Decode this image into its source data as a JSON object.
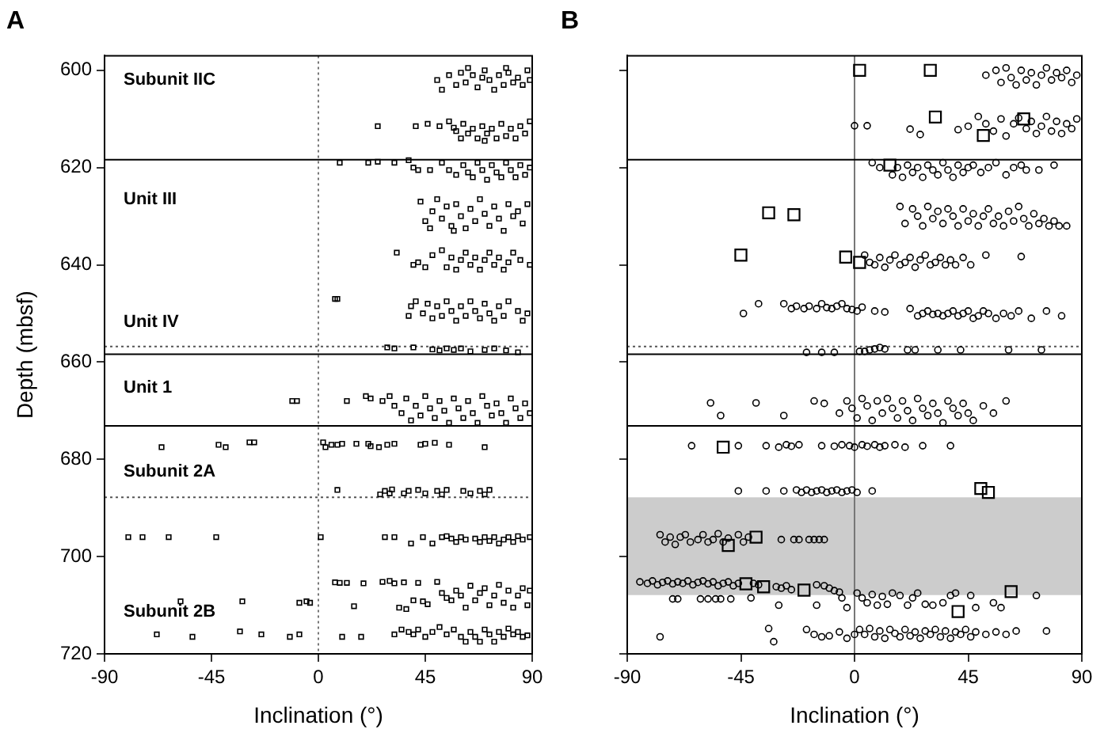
{
  "chart_data": [
    {
      "type": "scatter",
      "title": "A",
      "xlabel": "Inclination (°)",
      "ylabel": "Depth (mbsf)",
      "xlim": [
        -90,
        90
      ],
      "xticks": [
        -90,
        -45,
        0,
        45,
        90
      ],
      "ylim": [
        720,
        597
      ],
      "yticks": [
        600,
        620,
        640,
        660,
        680,
        700,
        720
      ],
      "grid": false,
      "legend": false,
      "series": [
        {
          "color": "#000000",
          "marker": "square",
          "x": [
            50,
            52,
            55,
            58,
            60,
            62,
            63,
            65,
            67,
            69,
            70,
            72,
            74,
            76,
            78,
            79,
            80,
            82,
            84,
            86,
            88,
            89,
            25,
            41,
            46,
            51,
            55,
            57,
            58,
            60,
            61,
            63,
            65,
            67,
            69,
            70,
            71,
            73,
            75,
            77,
            79,
            81,
            83,
            85,
            87,
            89,
            9,
            21,
            25,
            32,
            38,
            40,
            42,
            47,
            52,
            55,
            58,
            61,
            63,
            65,
            67,
            69,
            71,
            73,
            75,
            77,
            79,
            81,
            83,
            85,
            87,
            89,
            43,
            45,
            47,
            48,
            50,
            52,
            54,
            56,
            57,
            58,
            60,
            62,
            64,
            66,
            68,
            70,
            72,
            74,
            76,
            78,
            80,
            82,
            84,
            86,
            88,
            33,
            40,
            42,
            45,
            48,
            52,
            54,
            56,
            58,
            60,
            62,
            64,
            66,
            68,
            70,
            72,
            74,
            76,
            78,
            80,
            82,
            85,
            89,
            7,
            8,
            38,
            39,
            41,
            44,
            46,
            48,
            50,
            52,
            54,
            56,
            58,
            60,
            62,
            64,
            66,
            68,
            70,
            72,
            74,
            76,
            78,
            80,
            84,
            86,
            88,
            29,
            32,
            40,
            48,
            51,
            54,
            57,
            60,
            64,
            70,
            74,
            79,
            84,
            -11,
            -9,
            12,
            20,
            22,
            27,
            30,
            32,
            35,
            37,
            39,
            41,
            43,
            45,
            47,
            49,
            51,
            53,
            55,
            57,
            59,
            61,
            63,
            65,
            67,
            69,
            71,
            73,
            75,
            77,
            79,
            81,
            83,
            85,
            87,
            89,
            -66,
            -42,
            -39,
            -29,
            -27,
            2,
            3,
            5.5,
            8,
            10,
            16,
            21,
            22,
            25.5,
            29,
            32,
            43,
            45,
            49,
            55,
            70,
            8,
            26,
            28,
            30,
            31,
            36,
            38,
            42,
            45,
            50,
            52,
            54,
            61,
            64,
            68,
            70,
            72,
            -80,
            -74,
            -63,
            -43,
            1,
            28,
            32,
            39,
            44,
            48,
            52,
            54,
            56,
            58,
            60,
            62,
            66,
            68,
            70,
            72,
            74,
            76,
            78,
            80,
            82,
            84,
            86,
            89,
            -58,
            -32,
            -8,
            -5,
            -3.5,
            7,
            9,
            12,
            15,
            19,
            27,
            30,
            32,
            34,
            36,
            37,
            40,
            42,
            44,
            46,
            50,
            52,
            54,
            56,
            58,
            60,
            62,
            64,
            66,
            68,
            70,
            72,
            74,
            76,
            78,
            80,
            82,
            84,
            86,
            88,
            89,
            -68,
            -53,
            -33,
            -24,
            -12,
            -8,
            10,
            18,
            32,
            35,
            38,
            40,
            42,
            45,
            48,
            51,
            54,
            57,
            60,
            62,
            64,
            66,
            68,
            70,
            72,
            74,
            76,
            78,
            80,
            82,
            84,
            86,
            88
          ],
          "values": [
            602,
            604,
            601,
            603,
            600.5,
            602.5,
            599.5,
            601,
            603.5,
            601.5,
            600,
            602,
            604,
            601,
            603,
            599.5,
            600.5,
            602.5,
            601.5,
            603,
            600,
            602,
            611.5,
            611.5,
            611,
            611.5,
            610.5,
            611.8,
            612.5,
            614,
            611,
            613,
            612,
            614,
            611.5,
            614.5,
            613,
            612,
            614,
            611,
            613.5,
            612,
            614,
            611.5,
            613,
            610.5,
            619,
            619,
            618.8,
            619,
            618.5,
            620,
            620.5,
            620.5,
            619,
            620.5,
            621.5,
            619.5,
            621,
            622,
            619,
            620.5,
            622.5,
            619.5,
            621,
            622,
            619,
            620.5,
            622,
            619.5,
            621.5,
            620,
            627,
            631,
            632.5,
            629,
            626.5,
            630.5,
            628,
            632,
            633,
            627.5,
            630,
            632.5,
            628.5,
            631,
            626.5,
            629.5,
            632,
            628,
            630.5,
            633,
            627.5,
            630,
            629,
            631.5,
            627.5,
            637.5,
            640,
            639.5,
            640.5,
            638,
            637,
            640.5,
            638.5,
            641,
            639,
            637.5,
            640,
            638.5,
            641,
            639,
            637.5,
            640,
            638.5,
            641,
            639.5,
            637.5,
            639,
            640,
            647,
            647,
            650.5,
            648.5,
            647.5,
            650,
            648,
            651,
            648.5,
            650.5,
            647.5,
            649.5,
            651.5,
            648.5,
            650.5,
            647.5,
            649.5,
            651,
            648,
            650,
            651.5,
            648.5,
            650.5,
            647.5,
            649.5,
            651.5,
            650,
            657,
            657.2,
            657,
            657.4,
            657.6,
            657.2,
            657.5,
            657.2,
            657.8,
            657.5,
            657.2,
            657.6,
            658,
            668,
            668,
            668,
            667,
            667.5,
            668,
            667,
            669,
            670.5,
            667.5,
            672,
            669,
            671,
            667,
            669.5,
            671.5,
            668,
            670,
            672.5,
            667.5,
            669.5,
            671.5,
            668,
            670.5,
            672.5,
            667,
            669,
            671,
            668.5,
            670.5,
            672.5,
            667.5,
            669.5,
            671.5,
            668.5,
            670.5,
            677.5,
            677,
            677.5,
            676.5,
            676.5,
            676.5,
            677.5,
            677,
            677,
            676.8,
            676.8,
            676.8,
            677.3,
            677.5,
            677,
            676.8,
            677,
            676.8,
            676.6,
            677,
            677.5,
            686.3,
            687.2,
            686.5,
            687,
            686.2,
            687,
            686.5,
            686.3,
            687,
            686.5,
            687.2,
            686.3,
            686.5,
            687,
            686.5,
            687.2,
            686.3,
            696,
            696,
            696,
            696,
            696,
            696,
            696,
            697.3,
            696,
            697.3,
            696,
            695.8,
            696.3,
            697,
            696,
            696.5,
            696.3,
            697,
            696,
            696.8,
            696,
            697.3,
            696.5,
            696,
            697,
            695.8,
            696.5,
            696,
            709.2,
            709.2,
            709.5,
            709.2,
            709.5,
            705.3,
            705.4,
            705.4,
            710.2,
            705.5,
            705.2,
            705,
            705.5,
            710.5,
            705.3,
            710.8,
            709,
            705.4,
            709.2,
            709.8,
            705.2,
            707.5,
            708.5,
            709,
            707,
            708,
            710.5,
            706,
            709,
            707.5,
            706.5,
            710,
            708,
            705.8,
            709.5,
            707,
            710.5,
            708,
            706.5,
            710,
            707,
            716,
            716.5,
            715.4,
            716,
            716.5,
            716,
            716.5,
            716.5,
            716,
            715,
            715.5,
            716,
            715,
            716.5,
            715.5,
            714.5,
            716,
            715,
            716.5,
            717.5,
            715.5,
            716.5,
            717.5,
            715,
            716,
            717.5,
            715.5,
            716.5,
            714.8,
            716,
            715.5,
            716.5,
            716.2
          ]
        }
      ],
      "ref_lines": [
        {
          "axis": "x",
          "value": 0,
          "line_style": "dotted",
          "color": "#777777"
        },
        {
          "axis": "y",
          "value": 618.4,
          "line_style": "solid",
          "color": "#000000"
        },
        {
          "axis": "y",
          "value": 656.8,
          "line_style": "dotted",
          "color": "#555555"
        },
        {
          "axis": "y",
          "value": 658.4,
          "line_style": "solid",
          "color": "#000000"
        },
        {
          "axis": "y",
          "value": 673.1,
          "line_style": "solid",
          "color": "#000000"
        },
        {
          "axis": "y",
          "value": 687.8,
          "line_style": "dotted",
          "color": "#555555"
        }
      ],
      "annotations": [
        "Subunit IIC",
        "Unit III",
        "Unit IV",
        "Unit 1",
        "Subunit 2A",
        "Subunit 2B"
      ]
    },
    {
      "type": "scatter",
      "title": "B",
      "xlabel": "Inclination (°)",
      "xlim": [
        -90,
        90
      ],
      "xticks": [
        -90,
        -45,
        0,
        45,
        90
      ],
      "ylim": [
        720,
        597
      ],
      "yticks": [
        600,
        620,
        640,
        660,
        680,
        700,
        720
      ],
      "tick_labels": "x",
      "grid": false,
      "legend": false,
      "series": [
        {
          "color": "#000000",
          "marker": "circle",
          "x": [
            52,
            56,
            58,
            60,
            62,
            64,
            66,
            68,
            70,
            72,
            74,
            76,
            78,
            80,
            82,
            84,
            86,
            88,
            0,
            5,
            22,
            26,
            41,
            45,
            49,
            52,
            55,
            58,
            60,
            63,
            65,
            68,
            70,
            72,
            74,
            76,
            78,
            80,
            82,
            84,
            86,
            88,
            7,
            10,
            15,
            17,
            19,
            21,
            23,
            25,
            27,
            29,
            31,
            33,
            35,
            37,
            39,
            41,
            43,
            45,
            47,
            50,
            53,
            56,
            60,
            63,
            66,
            68,
            73,
            79,
            18,
            20,
            23,
            25,
            27,
            29,
            31,
            33,
            35,
            37,
            39,
            41,
            43,
            45,
            47,
            49,
            51,
            53,
            55,
            57,
            59,
            61,
            63,
            65,
            67,
            69,
            71,
            73,
            75,
            77,
            79,
            81,
            84,
            4,
            6,
            8,
            10,
            12,
            14,
            16,
            18,
            20,
            22,
            24,
            26,
            28,
            30,
            32,
            34,
            36,
            38,
            40,
            43,
            46,
            52,
            66,
            -44,
            -38,
            -28,
            -25,
            -23,
            -20,
            -18,
            -15,
            -13,
            -11,
            -9,
            -7,
            -5,
            -3,
            -1,
            1,
            3,
            8,
            12,
            22,
            25,
            27,
            29,
            31,
            33,
            35,
            37,
            39,
            41,
            43,
            45,
            47,
            49,
            51,
            53,
            56,
            59,
            62,
            65,
            70,
            76,
            82,
            -19,
            -13,
            -8,
            2,
            4,
            6,
            8,
            10,
            12,
            21,
            24,
            33,
            42,
            61,
            74,
            -57,
            -53,
            -39,
            -28,
            -16,
            -12,
            -6,
            -3,
            -1,
            1,
            3,
            5,
            7,
            9,
            11,
            13,
            15,
            17,
            19,
            21,
            23,
            25,
            27,
            29,
            31,
            33,
            35,
            37,
            39,
            41,
            43,
            45,
            47,
            51,
            55,
            60,
            -64.5,
            -46,
            -35,
            -30,
            -27,
            -25,
            -22,
            -13,
            -8,
            -5,
            -2,
            0,
            3,
            5,
            8,
            10,
            12,
            16,
            20,
            27,
            38,
            -46,
            -35,
            -28,
            -23,
            -21,
            -19,
            -17,
            -15,
            -13,
            -11,
            -9,
            -7,
            -5,
            -3,
            -1,
            1,
            7,
            -77,
            -75,
            -73,
            -71,
            -69,
            -67,
            -65,
            -62,
            -60,
            -58,
            -56,
            -54,
            -52,
            -50,
            -46,
            -44,
            -42,
            -29,
            -24,
            -22,
            -18,
            -16,
            -14,
            -12,
            -85,
            -82,
            -80,
            -78,
            -76,
            -74,
            -72,
            -70,
            -68,
            -66,
            -64,
            -62,
            -60,
            -58,
            -56,
            -54,
            -52,
            -50,
            -48,
            -46,
            -40,
            -38,
            -31,
            -29,
            -27,
            -25,
            -15,
            -12,
            -10,
            -8,
            -6,
            -72,
            -70,
            -61,
            -58,
            -55,
            -53,
            -49,
            -41,
            -30,
            -15,
            -5,
            -3,
            1,
            3,
            5,
            7,
            9,
            11,
            13,
            15,
            18,
            21,
            23,
            25,
            28,
            31,
            35,
            38,
            40,
            46,
            48,
            55,
            58,
            72,
            -77,
            -34,
            -32,
            -19,
            -16,
            -13,
            -10,
            -6,
            -3,
            0,
            2,
            4,
            6,
            8,
            10,
            12,
            14,
            16,
            18,
            20,
            22,
            24,
            26,
            28,
            30,
            32,
            34,
            36,
            38,
            40,
            42,
            44,
            46,
            48,
            52,
            56,
            60,
            64,
            76
          ],
          "values": [
            601,
            600,
            602.5,
            599.5,
            601.5,
            603,
            600,
            602,
            600.5,
            603,
            601,
            599.5,
            602,
            600.5,
            601.5,
            600,
            602.5,
            601,
            611.4,
            611.4,
            612.1,
            613.2,
            612.2,
            611.5,
            609.5,
            611,
            612.5,
            610,
            613.5,
            611,
            609.8,
            612,
            610.5,
            613,
            611.5,
            609.5,
            612.5,
            610.5,
            613,
            611,
            612,
            610,
            619,
            620,
            621.5,
            620,
            622,
            619.5,
            621,
            620,
            622,
            619.5,
            620.5,
            621.5,
            619,
            620.5,
            622,
            619.5,
            621,
            620,
            619.5,
            621,
            620,
            619,
            621.5,
            620,
            619.5,
            620.5,
            620.5,
            619.5,
            628,
            631.5,
            628.5,
            630,
            632,
            628,
            630.5,
            629,
            631.5,
            628.5,
            630,
            632,
            628.5,
            631,
            629.5,
            632,
            630,
            628.5,
            631.5,
            630,
            632,
            629,
            631,
            628,
            630.5,
            632,
            629.5,
            631.5,
            630.5,
            632,
            631,
            632,
            632,
            638,
            639.5,
            640,
            638.5,
            640.5,
            639,
            638,
            640,
            639.5,
            638.5,
            640.5,
            639,
            638,
            640,
            639.5,
            638.5,
            640,
            639,
            640,
            638.5,
            640,
            638,
            638.3,
            650,
            648,
            648,
            649,
            648.5,
            649,
            648.5,
            649,
            648,
            648.8,
            649,
            648.5,
            648,
            649,
            649.2,
            649.5,
            648.7,
            649.5,
            649.7,
            649,
            650.5,
            650,
            649.5,
            650.2,
            650,
            650.5,
            650,
            649.5,
            650.5,
            650,
            649.5,
            651,
            650.5,
            649.5,
            650,
            651,
            650,
            650.5,
            649.5,
            651,
            649.5,
            650.5,
            658,
            658,
            658,
            657.8,
            657.8,
            657.5,
            657.3,
            657,
            657.3,
            657.5,
            657.5,
            657.5,
            657.5,
            657.5,
            657.5,
            668.4,
            671,
            668.4,
            671,
            668,
            668.5,
            670.5,
            668,
            669.5,
            671.5,
            667.5,
            669,
            672,
            668,
            670.5,
            667.5,
            669.5,
            671.5,
            668,
            670,
            672,
            667.5,
            669.5,
            671,
            668.5,
            670.5,
            672.5,
            668,
            669.5,
            671,
            668.5,
            670.5,
            672,
            669,
            670.5,
            668,
            677.2,
            677.2,
            677.2,
            677.5,
            677,
            677.3,
            677,
            677.2,
            677.3,
            677,
            677.2,
            677.5,
            677,
            677.3,
            677,
            677.5,
            677.2,
            677,
            677.5,
            677.2,
            677.2,
            686.5,
            686.5,
            686.5,
            686.3,
            686.8,
            686.3,
            686.8,
            686.5,
            686.3,
            686.8,
            686.5,
            686.3,
            686.8,
            686.5,
            686.3,
            686.8,
            686.5,
            695.5,
            697,
            696,
            697.5,
            696,
            695.5,
            697,
            696.5,
            695.5,
            697,
            696.5,
            695.3,
            697,
            696.2,
            695.5,
            697,
            696,
            696.5,
            696.5,
            696.5,
            696.5,
            696.5,
            696.5,
            696.5,
            705.2,
            705.5,
            705,
            705.8,
            705.3,
            705,
            705.6,
            705.2,
            705.5,
            705,
            705.8,
            705.3,
            705,
            705.6,
            705.2,
            706,
            705.5,
            705.2,
            706,
            705.5,
            705.5,
            705.8,
            706.2,
            706.5,
            706,
            706.8,
            705.8,
            706,
            706.5,
            707,
            707.3,
            708.7,
            708.7,
            708.7,
            708.7,
            708.7,
            708.7,
            708.7,
            708.5,
            710,
            710,
            708.5,
            710.5,
            707.5,
            708.5,
            709.5,
            707.8,
            710,
            708.2,
            709.8,
            707.5,
            708,
            710,
            708.5,
            707.5,
            709.8,
            710,
            709.5,
            708,
            707.5,
            708,
            710.5,
            709.5,
            710.5,
            708,
            716.5,
            714.8,
            717.5,
            715,
            716,
            716.5,
            716.3,
            715.5,
            716.8,
            716,
            715,
            716,
            714.8,
            716.5,
            715.3,
            716.8,
            715,
            715.8,
            716.5,
            715,
            716.3,
            715.5,
            716.8,
            715.3,
            716,
            715,
            716.5,
            715.3,
            716.8,
            715.5,
            716,
            715,
            716.5,
            715.5,
            716,
            715.5,
            716,
            715.3,
            715.3
          ]
        },
        {
          "color": "#000000",
          "marker": "square",
          "x": [
            2,
            30,
            32,
            51,
            67,
            14,
            -34,
            -24,
            -45,
            -3.5,
            2,
            -52,
            50,
            53,
            -50,
            -39,
            -43,
            -36,
            -20,
            62,
            41
          ],
          "values": [
            600,
            600,
            609.6,
            613.4,
            610,
            619.5,
            629.3,
            629.7,
            638,
            638.4,
            639.5,
            677.5,
            686,
            686.8,
            697.7,
            696,
            705.6,
            706.2,
            706.9,
            707.2,
            711.3
          ]
        }
      ],
      "ref_lines": [
        {
          "axis": "x",
          "value": 0,
          "line_style": "solid",
          "color": "#777777"
        },
        {
          "axis": "y",
          "value": 618.4,
          "line_style": "solid",
          "color": "#000000"
        },
        {
          "axis": "y",
          "value": 656.8,
          "line_style": "dotted",
          "color": "#555555"
        },
        {
          "axis": "y",
          "value": 658.4,
          "line_style": "solid",
          "color": "#000000"
        },
        {
          "axis": "y",
          "value": 673.1,
          "line_style": "solid",
          "color": "#000000"
        }
      ],
      "bands": [
        {
          "axis": "y",
          "from": 687.8,
          "to": 707.9,
          "color": "#cccccc"
        }
      ]
    }
  ]
}
